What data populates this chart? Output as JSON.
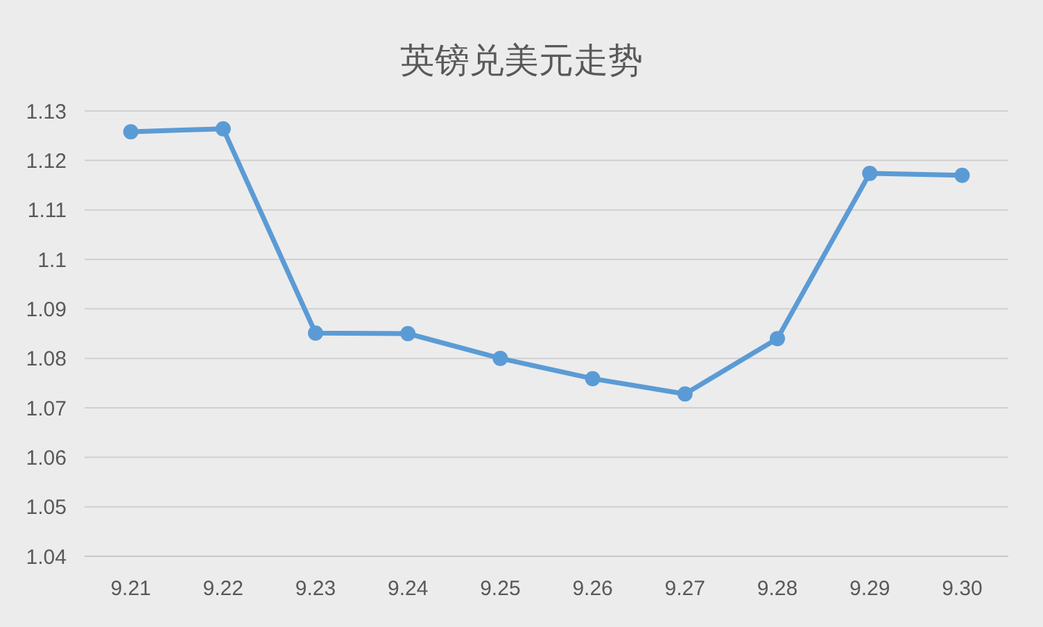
{
  "chart_data": {
    "type": "line",
    "title": "英镑兑美元走势",
    "categories": [
      "9.21",
      "9.22",
      "9.23",
      "9.24",
      "9.25",
      "9.26",
      "9.27",
      "9.28",
      "9.29",
      "9.30"
    ],
    "series": [
      {
        "color": "#5b9bd5",
        "values": [
          1.1258,
          1.1264,
          1.0851,
          1.085,
          1.08,
          1.0759,
          1.0728,
          1.084,
          1.1174,
          1.117
        ]
      }
    ],
    "ylim": [
      1.04,
      1.13
    ],
    "yticks": [
      1.04,
      1.05,
      1.06,
      1.07,
      1.08,
      1.09,
      {
        "value": 1.1,
        "label": "1.1"
      },
      1.11,
      1.12,
      1.13
    ],
    "grid": "y",
    "marker": "circle",
    "line_style": "solid"
  }
}
